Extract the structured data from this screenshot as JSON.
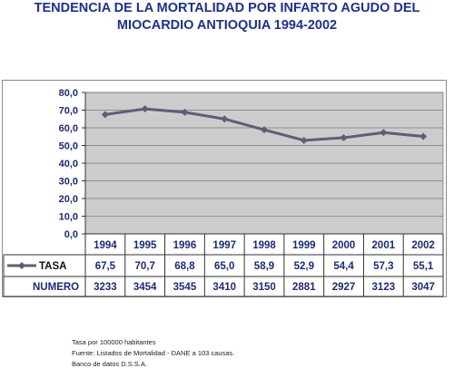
{
  "title": {
    "line1": "TENDENCIA DE LA MORTALIDAD POR INFARTO AGUDO DEL",
    "line2": "MIOCARDIO ANTIOQUIA 1994-2002"
  },
  "chart_data": {
    "type": "line",
    "categories": [
      "1994",
      "1995",
      "1996",
      "1997",
      "1998",
      "1999",
      "2000",
      "2001",
      "2002"
    ],
    "series": [
      {
        "name": "TASA",
        "values": [
          67.5,
          70.7,
          68.8,
          65.0,
          58.9,
          52.9,
          54.4,
          57.3,
          55.1
        ],
        "labels": [
          "67,5",
          "70,7",
          "68,8",
          "65,0",
          "58,9",
          "52,9",
          "54,4",
          "57,3",
          "55,1"
        ]
      }
    ],
    "table_rows": [
      {
        "name": "NUMERO",
        "values": [
          "3233",
          "3454",
          "3545",
          "3410",
          "3150",
          "2881",
          "2927",
          "3123",
          "3047"
        ]
      }
    ],
    "ylim": [
      0,
      80
    ],
    "yticks": [
      "0,0",
      "10,0",
      "20,0",
      "30,0",
      "40,0",
      "50,0",
      "60,0",
      "70,0",
      "80,0"
    ],
    "grid": true,
    "legend": "data-table",
    "colors": {
      "plot_bg": "#cccccc",
      "line": "#5c5f74",
      "text": "#1c2a7a",
      "title": "#1f2f8f"
    }
  },
  "notes": [
    "Tasa por 100000 habitantes",
    "Fuente: Listados de Mortalidad - DANE a 103 causas.",
    "Banco de datos D.S.S.A."
  ]
}
